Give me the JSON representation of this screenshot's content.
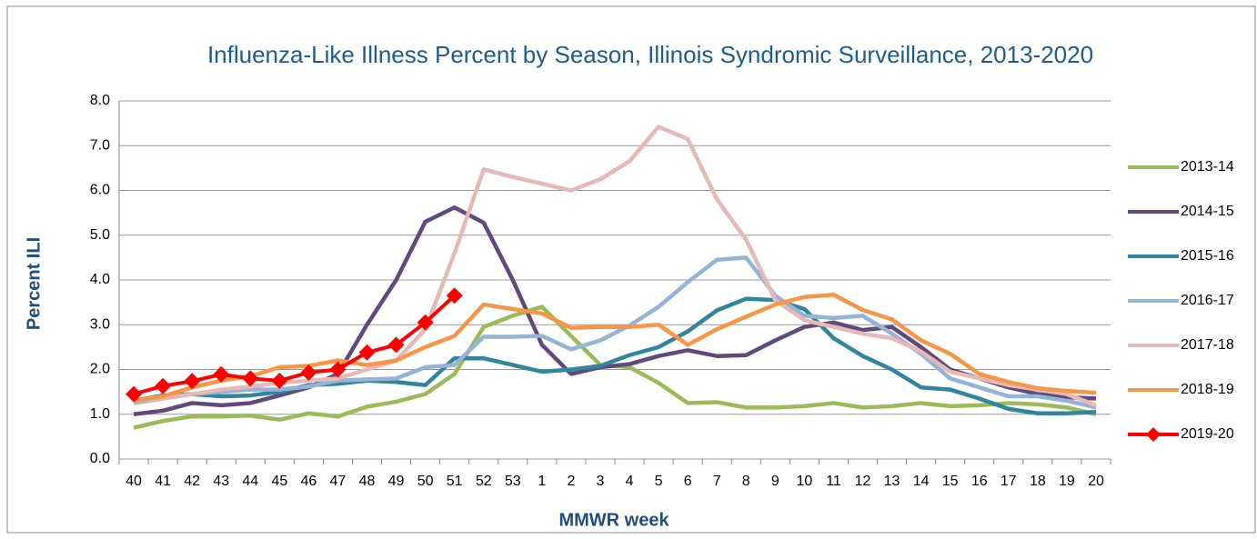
{
  "chart_data": {
    "type": "line",
    "title": "Influenza-Like Illness Percent by Season, Illinois Syndromic Surveillance, 2013-2020",
    "x_label": "MMWR week",
    "y_label": "Percent ILI",
    "categories": [
      "40",
      "41",
      "42",
      "43",
      "44",
      "45",
      "46",
      "47",
      "48",
      "49",
      "50",
      "51",
      "52",
      "53",
      "1",
      "2",
      "3",
      "4",
      "5",
      "6",
      "7",
      "8",
      "9",
      "10",
      "11",
      "12",
      "13",
      "14",
      "15",
      "16",
      "17",
      "18",
      "19",
      "20"
    ],
    "ylim": [
      0,
      8
    ],
    "yticks": [
      {
        "value": 0,
        "label": "0.0"
      },
      {
        "value": 1,
        "label": "1.0"
      },
      {
        "value": 2,
        "label": "2.0"
      },
      {
        "value": 3,
        "label": "3.0"
      },
      {
        "value": 4,
        "label": "4.0"
      },
      {
        "value": 5,
        "label": "5.0"
      },
      {
        "value": 6,
        "label": "6.0"
      },
      {
        "value": 7,
        "label": "7.0"
      },
      {
        "value": 8,
        "label": "8.0"
      }
    ],
    "grid": true,
    "legend": "right",
    "series": [
      {
        "name": "2013-14",
        "color": "#9bbb59",
        "values": [
          0.7,
          0.85,
          0.95,
          0.95,
          0.97,
          0.88,
          1.02,
          0.95,
          1.17,
          1.28,
          1.45,
          1.9,
          2.95,
          3.2,
          3.4,
          2.75,
          2.1,
          2.05,
          1.7,
          1.25,
          1.27,
          1.15,
          1.15,
          1.18,
          1.25,
          1.15,
          1.18,
          1.25,
          1.18,
          1.2,
          1.25,
          1.22,
          1.15,
          1.0
        ]
      },
      {
        "name": "2014-15",
        "color": "#604a7b",
        "values": [
          1.0,
          1.08,
          1.25,
          1.2,
          1.25,
          1.42,
          1.6,
          1.9,
          3.0,
          4.0,
          5.3,
          5.62,
          5.28,
          4.0,
          2.55,
          1.9,
          2.05,
          2.12,
          2.3,
          2.43,
          2.3,
          2.32,
          2.65,
          2.95,
          3.05,
          2.88,
          2.95,
          2.5,
          2.0,
          1.8,
          1.6,
          1.45,
          1.38,
          1.35
        ]
      },
      {
        "name": "2015-16",
        "color": "#31859c",
        "values": [
          1.3,
          1.42,
          1.45,
          1.4,
          1.42,
          1.5,
          1.65,
          1.68,
          1.75,
          1.72,
          1.65,
          2.25,
          2.25,
          2.1,
          1.95,
          2.0,
          2.08,
          2.32,
          2.5,
          2.85,
          3.32,
          3.58,
          3.55,
          3.35,
          2.7,
          2.3,
          2.0,
          1.6,
          1.55,
          1.35,
          1.12,
          1.02,
          1.02,
          1.05
        ]
      },
      {
        "name": "2016-17",
        "color": "#95b3d7",
        "values": [
          1.25,
          1.35,
          1.45,
          1.5,
          1.55,
          1.55,
          1.62,
          1.75,
          1.78,
          1.8,
          2.05,
          2.1,
          2.73,
          2.73,
          2.75,
          2.45,
          2.65,
          2.98,
          3.4,
          3.95,
          4.45,
          4.5,
          3.65,
          3.2,
          3.15,
          3.2,
          2.8,
          2.35,
          1.8,
          1.6,
          1.4,
          1.4,
          1.3,
          1.15
        ]
      },
      {
        "name": "2017-18",
        "color": "#e6b9b8",
        "values": [
          1.3,
          1.35,
          1.45,
          1.55,
          1.62,
          1.7,
          1.75,
          1.8,
          2.0,
          2.2,
          2.9,
          4.6,
          6.47,
          6.3,
          6.15,
          6.0,
          6.25,
          6.65,
          7.42,
          7.15,
          5.8,
          4.9,
          3.55,
          3.1,
          2.95,
          2.8,
          2.7,
          2.4,
          1.95,
          1.8,
          1.65,
          1.55,
          1.45,
          1.2
        ]
      },
      {
        "name": "2018-19",
        "color": "#f79646",
        "values": [
          1.3,
          1.4,
          1.6,
          1.75,
          1.85,
          2.05,
          2.08,
          2.2,
          2.1,
          2.2,
          2.5,
          2.75,
          3.45,
          3.35,
          3.25,
          2.93,
          2.95,
          2.95,
          3.0,
          2.55,
          2.9,
          3.18,
          3.45,
          3.62,
          3.67,
          3.33,
          3.12,
          2.65,
          2.35,
          1.9,
          1.72,
          1.58,
          1.52,
          1.48
        ]
      },
      {
        "name": "2019-20",
        "color": "#ff0000",
        "marker": "diamond",
        "values": [
          1.45,
          1.63,
          1.74,
          1.89,
          1.8,
          1.75,
          1.93,
          2.0,
          2.38,
          2.55,
          3.05,
          3.65,
          null,
          null,
          null,
          null,
          null,
          null,
          null,
          null,
          null,
          null,
          null,
          null,
          null,
          null,
          null,
          null,
          null,
          null,
          null,
          null,
          null,
          null
        ]
      }
    ]
  }
}
